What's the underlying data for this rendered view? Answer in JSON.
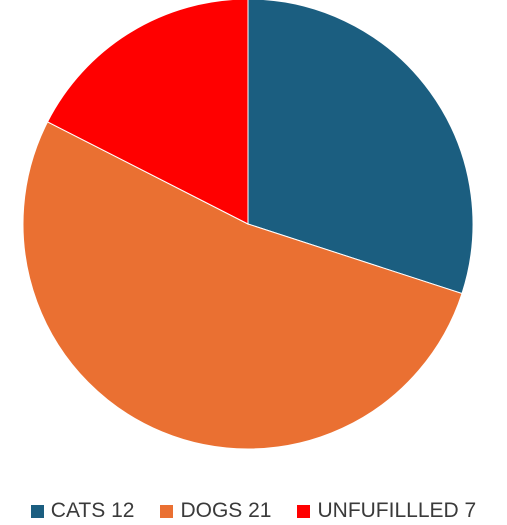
{
  "chart_data": {
    "type": "pie",
    "categories": [
      "CATS",
      "DOGS",
      "UNFUFILLLED"
    ],
    "values": [
      12,
      21,
      7
    ],
    "colors": [
      "#1b5e80",
      "#ea7032",
      "#ff0000"
    ],
    "legend_labels": [
      "CATS 12",
      "DOGS 21",
      "UNFUFILLLED 7"
    ],
    "legend_position": "bottom",
    "start_angle": "12 o'clock",
    "direction": "clockwise"
  }
}
